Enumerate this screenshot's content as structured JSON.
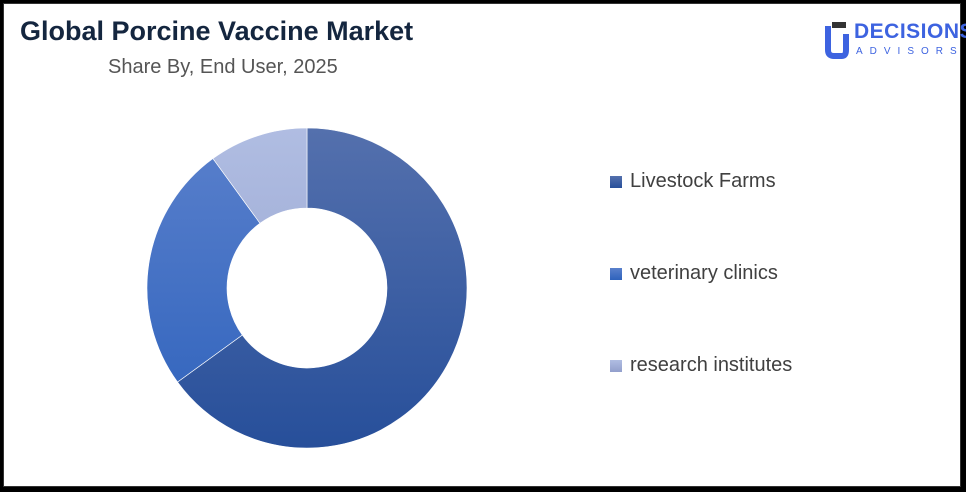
{
  "header": {
    "title": "Global Porcine Vaccine Market",
    "subtitle": "Share By, End User, 2025"
  },
  "logo": {
    "line1": "DECISIONS",
    "line2": "ADVISORS",
    "color": "#3d63e0"
  },
  "chart_data": {
    "type": "pie",
    "donut": true,
    "title": "Global Porcine Vaccine Market",
    "subtitle": "Share By, End User, 2025",
    "categories": [
      "Livestock Farms",
      "veterinary clinics",
      "research institutes"
    ],
    "values": [
      65,
      25,
      10
    ],
    "unit": "%",
    "colors": [
      [
        "#5470ad",
        "#274f9a"
      ],
      [
        "#5a80cc",
        "#2e62bc"
      ],
      [
        "#b0bde2",
        "#929fcc"
      ]
    ],
    "legend_position": "right"
  }
}
